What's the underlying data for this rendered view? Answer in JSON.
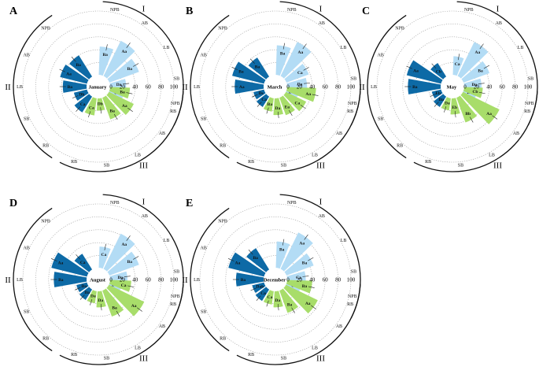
{
  "chart_data": [
    {
      "type": "polar-bar",
      "panel": "A",
      "title": "January",
      "radial_ticks": [
        "0",
        "20",
        "40",
        "60",
        "80",
        "100"
      ],
      "radial_range": [
        0,
        100
      ],
      "groups": [
        {
          "label": "I",
          "color": "#b3dcf5",
          "region_labels": [
            "NPB",
            "AB",
            "LB",
            "SB",
            "RB"
          ],
          "bars": [
            {
              "label": "Ba",
              "value": 45
            },
            {
              "label": "Aa",
              "value": 62
            },
            {
              "label": "Ba",
              "value": 50
            },
            {
              "label": "Da",
              "value": 26
            },
            {
              "label": "Ca",
              "value": 24
            }
          ]
        },
        {
          "label": "II",
          "color": "#0d6aa6",
          "region_labels": [
            "RB",
            "SB",
            "LB",
            "AB",
            "NPB"
          ],
          "bars": [
            {
              "label": "Ca",
              "value": 30
            },
            {
              "label": "Db",
              "value": 22
            },
            {
              "label": "Ba",
              "value": 38
            },
            {
              "label": "Aa",
              "value": 44
            },
            {
              "label": "Ba",
              "value": 40
            }
          ]
        },
        {
          "label": "III",
          "color": "#a8dd6a",
          "region_labels": [
            "NPB",
            "AB",
            "LB",
            "SB",
            "RB"
          ],
          "bars": [
            {
              "label": "Ba",
              "value": 32
            },
            {
              "label": "Aa",
              "value": 44
            },
            {
              "label": "Ba",
              "value": 37
            },
            {
              "label": "Db",
              "value": 20
            },
            {
              "label": "Ca",
              "value": 28
            }
          ]
        }
      ]
    },
    {
      "type": "polar-bar",
      "panel": "B",
      "title": "March",
      "radial_ticks": [
        "0",
        "20",
        "40",
        "60",
        "80",
        "100"
      ],
      "radial_range": [
        0,
        100
      ],
      "groups": [
        {
          "label": "I",
          "color": "#b3dcf5",
          "region_labels": [
            "NPB",
            "AB",
            "LB",
            "SB",
            "RB"
          ],
          "bars": [
            {
              "label": "Ba",
              "value": 47
            },
            {
              "label": "Aa",
              "value": 60
            },
            {
              "label": "Ca",
              "value": 38
            },
            {
              "label": "Da",
              "value": 32
            },
            {
              "label": "Db",
              "value": 20
            }
          ]
        },
        {
          "label": "II",
          "color": "#0d6aa6",
          "region_labels": [
            "RB",
            "SB",
            "LB",
            "AB",
            "NPB"
          ],
          "bars": [
            {
              "label": "Ca",
              "value": 20
            },
            {
              "label": "Ds",
              "value": 18
            },
            {
              "label": "Aa",
              "value": 46
            },
            {
              "label": "Ba",
              "value": 52
            },
            {
              "label": "Ba",
              "value": 36
            }
          ]
        },
        {
          "label": "III",
          "color": "#a8dd6a",
          "region_labels": [
            "NPB",
            "AB",
            "LB",
            "SB",
            "RB"
          ],
          "bars": [
            {
              "label": "Aa",
              "value": 46
            },
            {
              "label": "Ca",
              "value": 36
            },
            {
              "label": "Ea",
              "value": 30
            },
            {
              "label": "Da",
              "value": 27
            },
            {
              "label": "Ba",
              "value": 22
            }
          ]
        }
      ]
    },
    {
      "type": "polar-bar",
      "panel": "C",
      "title": "May",
      "radial_ticks": [
        "0",
        "20",
        "40",
        "60",
        "80",
        "100"
      ],
      "radial_range": [
        0,
        100
      ],
      "groups": [
        {
          "label": "I",
          "color": "#b3dcf5",
          "region_labels": [
            "NPB",
            "AB",
            "LB",
            "SB",
            "RB"
          ],
          "bars": [
            {
              "label": "Ca",
              "value": 30
            },
            {
              "label": "Aa",
              "value": 60
            },
            {
              "label": "Ba",
              "value": 44
            },
            {
              "label": "Da",
              "value": 28
            },
            {
              "label": "Da",
              "value": 22
            }
          ]
        },
        {
          "label": "II",
          "color": "#0d6aa6",
          "region_labels": [
            "RB",
            "SB",
            "LB",
            "AB",
            "NPB"
          ],
          "bars": [
            {
              "label": "Da",
              "value": 20
            },
            {
              "label": "Eb",
              "value": 16
            },
            {
              "label": "Ba",
              "value": 52
            },
            {
              "label": "Aa",
              "value": 56
            },
            {
              "label": "Cb",
              "value": 26
            }
          ]
        },
        {
          "label": "III",
          "color": "#a8dd6a",
          "region_labels": [
            "NPB",
            "AB",
            "LB",
            "SB",
            "RB"
          ],
          "bars": [
            {
              "label": "Cb",
              "value": 30
            },
            {
              "label": "Aa",
              "value": 64
            },
            {
              "label": "Bb",
              "value": 42
            },
            {
              "label": "Eb",
              "value": 26
            },
            {
              "label": "Da",
              "value": 20
            }
          ]
        }
      ]
    },
    {
      "type": "polar-bar",
      "panel": "D",
      "title": "August",
      "radial_ticks": [
        "0",
        "20",
        "40",
        "60",
        "80",
        "100"
      ],
      "radial_range": [
        0,
        100
      ],
      "groups": [
        {
          "label": "I",
          "color": "#b3dcf5",
          "region_labels": [
            "NPB",
            "AB",
            "LB",
            "SB",
            "RB"
          ],
          "bars": [
            {
              "label": "Ca",
              "value": 34
            },
            {
              "label": "Aa",
              "value": 62
            },
            {
              "label": "Ba",
              "value": 50
            },
            {
              "label": "Da",
              "value": 28
            },
            {
              "label": "Da",
              "value": 20
            }
          ]
        },
        {
          "label": "II",
          "color": "#0d6aa6",
          "region_labels": [
            "RB",
            "SB",
            "LB",
            "AB",
            "NPB"
          ],
          "bars": [
            {
              "label": "Da",
              "value": 20
            },
            {
              "label": "Da",
              "value": 18
            },
            {
              "label": "Ba",
              "value": 52
            },
            {
              "label": "Aa",
              "value": 58
            },
            {
              "label": "Ca",
              "value": 30
            }
          ]
        },
        {
          "label": "III",
          "color": "#a8dd6a",
          "region_labels": [
            "NPB",
            "AB",
            "LB",
            "SB",
            "RB"
          ],
          "bars": [
            {
              "label": "Ca",
              "value": 34
            },
            {
              "label": "Aa",
              "value": 62
            },
            {
              "label": "Ba",
              "value": 44
            },
            {
              "label": "Da",
              "value": 26
            },
            {
              "label": "Da",
              "value": 20
            }
          ]
        }
      ]
    },
    {
      "type": "polar-bar",
      "panel": "E",
      "title": "December",
      "radial_ticks": [
        "0",
        "20",
        "40",
        "60",
        "80",
        "100"
      ],
      "radial_range": [
        0,
        100
      ],
      "groups": [
        {
          "label": "I",
          "color": "#b3dcf5",
          "region_labels": [
            "NPB",
            "AB",
            "LB",
            "SB",
            "RB"
          ],
          "bars": [
            {
              "label": "Ba",
              "value": 42
            },
            {
              "label": "Aa",
              "value": 64
            },
            {
              "label": "Ba",
              "value": 46
            },
            {
              "label": "Ca",
              "value": 30
            },
            {
              "label": "Ca",
              "value": 24
            }
          ]
        },
        {
          "label": "II",
          "color": "#0d6aa6",
          "region_labels": [
            "RB",
            "SB",
            "LB",
            "AB",
            "NPB"
          ],
          "bars": [
            {
              "label": "Ca",
              "value": 22
            },
            {
              "label": "Dab",
              "value": 20
            },
            {
              "label": "Ba",
              "value": 44
            },
            {
              "label": "Aa",
              "value": 58
            },
            {
              "label": "Ba",
              "value": 40
            }
          ]
        },
        {
          "label": "III",
          "color": "#a8dd6a",
          "region_labels": [
            "NPB",
            "AB",
            "LB",
            "SB",
            "RB"
          ],
          "bars": [
            {
              "label": "Ba",
              "value": 40
            },
            {
              "label": "Aa",
              "value": 56
            },
            {
              "label": "Ba",
              "value": 38
            },
            {
              "label": "Da",
              "value": 26
            },
            {
              "label": "Ca",
              "value": 22
            }
          ]
        }
      ]
    }
  ]
}
